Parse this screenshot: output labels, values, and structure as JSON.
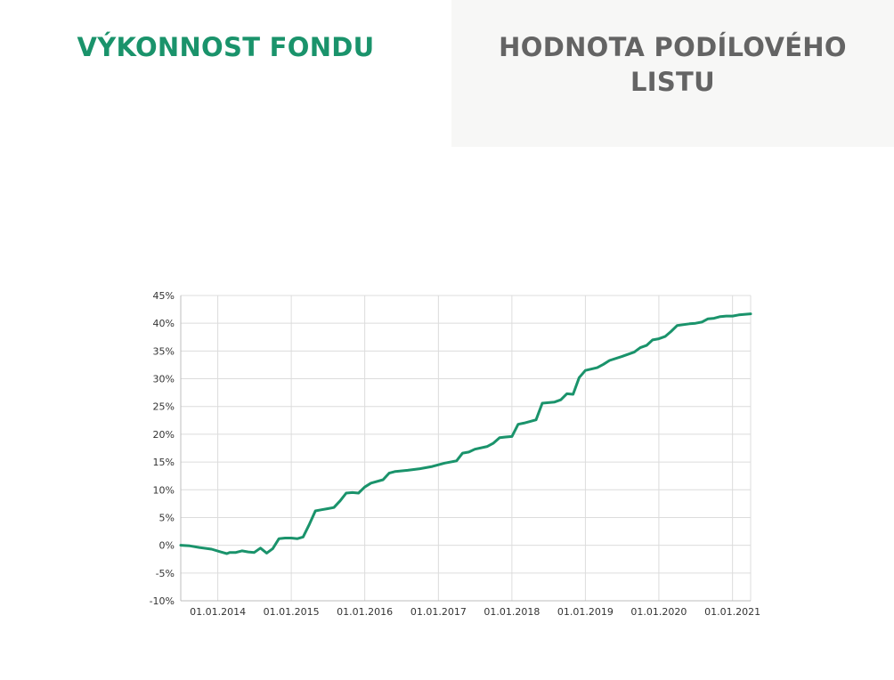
{
  "tabs": {
    "performance": "VÝKONNOST FONDU",
    "unit_value": "HODNOTA PODÍLOVÉHO LISTU"
  },
  "colors": {
    "accent": "#1a936b",
    "inactive_text": "#646464",
    "inactive_bg": "#f7f7f6",
    "grid": "#dcdcdc"
  },
  "chart_data": {
    "type": "line",
    "title": "",
    "xlabel": "",
    "ylabel": "",
    "ylim": [
      -10,
      45
    ],
    "xlim": [
      "2013-07-01",
      "2021-04-01"
    ],
    "y_ticks": [
      45,
      40,
      35,
      30,
      25,
      20,
      15,
      10,
      5,
      0,
      -5,
      -10
    ],
    "y_tick_labels": [
      "45%",
      "40%",
      "35%",
      "30%",
      "25%",
      "20%",
      "15%",
      "10%",
      "5%",
      "0%",
      "-5%",
      "-10%"
    ],
    "x_ticks": [
      "2014-01-01",
      "2015-01-01",
      "2016-01-01",
      "2017-01-01",
      "2018-01-01",
      "2019-01-01",
      "2020-01-01",
      "2021-01-01"
    ],
    "x_tick_labels": [
      "01.01.2014",
      "01.01.2015",
      "01.01.2016",
      "01.01.2017",
      "01.01.2018",
      "01.01.2019",
      "01.01.2020",
      "01.01.2021"
    ],
    "grid": true,
    "legend": "none",
    "series": [
      {
        "color": "#1a936b",
        "points": [
          [
            "2013-07-01",
            0.0
          ],
          [
            "2013-08-15",
            -0.1
          ],
          [
            "2013-10-01",
            -0.4
          ],
          [
            "2013-12-01",
            -0.7
          ],
          [
            "2014-01-15",
            -1.2
          ],
          [
            "2014-02-15",
            -1.5
          ],
          [
            "2014-03-01",
            -1.3
          ],
          [
            "2014-04-01",
            -1.3
          ],
          [
            "2014-05-01",
            -1.0
          ],
          [
            "2014-06-01",
            -1.2
          ],
          [
            "2014-07-01",
            -1.3
          ],
          [
            "2014-08-01",
            -0.5
          ],
          [
            "2014-09-01",
            -1.4
          ],
          [
            "2014-10-01",
            -0.6
          ],
          [
            "2014-11-01",
            1.2
          ],
          [
            "2014-12-01",
            1.3
          ],
          [
            "2015-01-01",
            1.3
          ],
          [
            "2015-02-01",
            1.2
          ],
          [
            "2015-03-01",
            1.5
          ],
          [
            "2015-04-01",
            3.8
          ],
          [
            "2015-05-01",
            6.2
          ],
          [
            "2015-06-01",
            6.4
          ],
          [
            "2015-07-01",
            6.6
          ],
          [
            "2015-08-01",
            6.8
          ],
          [
            "2015-09-01",
            8.0
          ],
          [
            "2015-10-01",
            9.4
          ],
          [
            "2015-11-01",
            9.5
          ],
          [
            "2015-12-01",
            9.4
          ],
          [
            "2016-01-01",
            10.5
          ],
          [
            "2016-02-01",
            11.2
          ],
          [
            "2016-04-01",
            11.8
          ],
          [
            "2016-05-01",
            13.0
          ],
          [
            "2016-06-01",
            13.3
          ],
          [
            "2016-08-01",
            13.5
          ],
          [
            "2016-10-01",
            13.8
          ],
          [
            "2016-12-01",
            14.2
          ],
          [
            "2017-01-01",
            14.5
          ],
          [
            "2017-02-01",
            14.8
          ],
          [
            "2017-04-01",
            15.2
          ],
          [
            "2017-05-01",
            16.6
          ],
          [
            "2017-06-01",
            16.8
          ],
          [
            "2017-07-01",
            17.3
          ],
          [
            "2017-09-01",
            17.8
          ],
          [
            "2017-10-01",
            18.4
          ],
          [
            "2017-11-01",
            19.4
          ],
          [
            "2017-12-01",
            19.5
          ],
          [
            "2018-01-01",
            19.6
          ],
          [
            "2018-02-01",
            21.8
          ],
          [
            "2018-03-01",
            22.0
          ],
          [
            "2018-04-01",
            22.3
          ],
          [
            "2018-05-01",
            22.6
          ],
          [
            "2018-06-01",
            25.6
          ],
          [
            "2018-07-01",
            25.7
          ],
          [
            "2018-08-01",
            25.8
          ],
          [
            "2018-09-01",
            26.2
          ],
          [
            "2018-10-01",
            27.3
          ],
          [
            "2018-11-01",
            27.2
          ],
          [
            "2018-12-01",
            30.2
          ],
          [
            "2019-01-01",
            31.5
          ],
          [
            "2019-03-01",
            32.0
          ],
          [
            "2019-04-01",
            32.6
          ],
          [
            "2019-05-01",
            33.3
          ],
          [
            "2019-07-01",
            34.0
          ],
          [
            "2019-08-01",
            34.4
          ],
          [
            "2019-09-01",
            34.8
          ],
          [
            "2019-10-01",
            35.6
          ],
          [
            "2019-11-01",
            36.0
          ],
          [
            "2019-12-01",
            37.0
          ],
          [
            "2020-01-01",
            37.2
          ],
          [
            "2020-02-01",
            37.6
          ],
          [
            "2020-03-01",
            38.5
          ],
          [
            "2020-04-01",
            39.6
          ],
          [
            "2020-06-01",
            39.9
          ],
          [
            "2020-07-01",
            40.0
          ],
          [
            "2020-08-01",
            40.2
          ],
          [
            "2020-09-01",
            40.8
          ],
          [
            "2020-10-01",
            40.9
          ],
          [
            "2020-11-01",
            41.2
          ],
          [
            "2020-12-01",
            41.3
          ],
          [
            "2021-01-01",
            41.3
          ],
          [
            "2021-02-01",
            41.5
          ],
          [
            "2021-04-01",
            41.7
          ]
        ]
      }
    ]
  }
}
